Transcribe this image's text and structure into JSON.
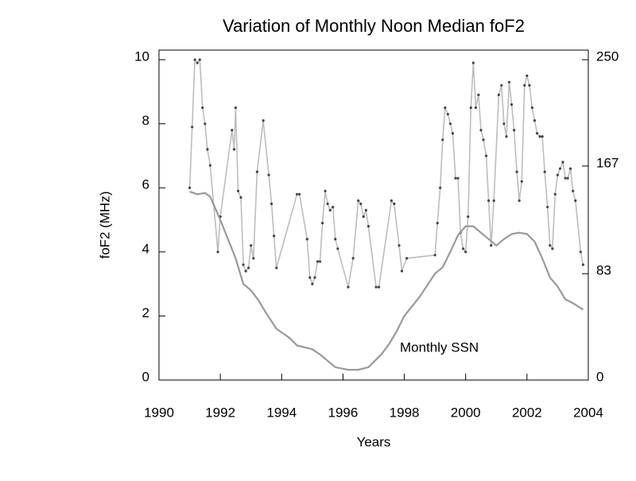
{
  "chart_data": {
    "type": "line",
    "title": "Variation of Monthly Noon Median foF2",
    "x_label": "Years",
    "y_label": "foF2 (MHz)",
    "xlim": [
      1990,
      2004
    ],
    "xticks": [
      1990,
      1992,
      1994,
      1996,
      1998,
      2000,
      2002,
      2004
    ],
    "ylim": [
      0,
      10.3
    ],
    "yticks": [
      0,
      2,
      4,
      6,
      8,
      10
    ],
    "y2lim": [
      0,
      257.5
    ],
    "y2ticks": [
      0,
      83,
      167,
      250
    ],
    "annotation": "Monthly SSN",
    "series": [
      {
        "color": "#bdbdbd",
        "markers": true,
        "x": [
          1991.0,
          1991.08,
          1991.17,
          1991.25,
          1991.33,
          1991.42,
          1991.5,
          1991.58,
          1991.67,
          1991.92,
          1992.0,
          1992.38,
          1992.45,
          1992.5,
          1992.58,
          1992.67,
          1992.75,
          1992.83,
          1992.92,
          1993.0,
          1993.08,
          1993.2,
          1993.4,
          1993.58,
          1993.67,
          1993.75,
          1993.83,
          1994.5,
          1994.58,
          1994.83,
          1994.92,
          1995.0,
          1995.08,
          1995.17,
          1995.25,
          1995.33,
          1995.42,
          1995.5,
          1995.58,
          1995.67,
          1995.75,
          1995.83,
          1996.17,
          1996.33,
          1996.5,
          1996.58,
          1996.67,
          1996.75,
          1996.83,
          1997.08,
          1997.17,
          1997.58,
          1997.67,
          1997.83,
          1997.92,
          1998.08,
          1999.0,
          1999.08,
          1999.17,
          1999.25,
          1999.33,
          1999.42,
          1999.5,
          1999.58,
          1999.67,
          1999.75,
          1999.83,
          1999.92,
          2000.0,
          2000.08,
          2000.17,
          2000.25,
          2000.33,
          2000.42,
          2000.5,
          2000.58,
          2000.67,
          2000.75,
          2000.83,
          2000.92,
          2001.08,
          2001.17,
          2001.25,
          2001.33,
          2001.42,
          2001.5,
          2001.58,
          2001.67,
          2001.75,
          2001.83,
          2001.92,
          2002.0,
          2002.08,
          2002.17,
          2002.25,
          2002.33,
          2002.42,
          2002.5,
          2002.58,
          2002.67,
          2002.75,
          2002.83,
          2002.92,
          2003.0,
          2003.08,
          2003.17,
          2003.25,
          2003.33,
          2003.42,
          2003.5,
          2003.58,
          2003.75,
          2003.83
        ],
        "values": [
          6.0,
          7.9,
          10.0,
          9.9,
          10.0,
          8.5,
          8.0,
          7.2,
          6.7,
          4.0,
          5.1,
          7.8,
          7.2,
          8.5,
          5.9,
          5.7,
          3.6,
          3.4,
          3.5,
          4.2,
          3.8,
          6.5,
          8.1,
          6.4,
          5.5,
          4.5,
          3.5,
          5.8,
          5.8,
          4.4,
          3.2,
          3.0,
          3.2,
          3.7,
          3.7,
          4.9,
          5.9,
          5.5,
          5.3,
          5.4,
          4.4,
          4.1,
          2.9,
          3.8,
          5.6,
          5.5,
          5.1,
          5.3,
          4.8,
          2.9,
          2.9,
          5.6,
          5.5,
          4.2,
          3.4,
          3.8,
          3.9,
          4.9,
          6.0,
          7.5,
          8.5,
          8.3,
          8.0,
          7.7,
          6.3,
          6.3,
          4.6,
          4.1,
          4.0,
          5.1,
          8.5,
          9.9,
          8.5,
          8.9,
          7.8,
          7.5,
          7.0,
          5.6,
          4.2,
          5.6,
          8.9,
          9.2,
          8.0,
          7.6,
          9.3,
          8.6,
          7.8,
          6.5,
          5.6,
          6.2,
          9.2,
          9.5,
          9.2,
          8.5,
          8.1,
          7.7,
          7.6,
          7.6,
          6.5,
          5.4,
          4.2,
          4.1,
          5.8,
          6.4,
          6.6,
          6.8,
          6.3,
          6.3,
          6.6,
          5.9,
          5.6,
          4.0,
          3.6
        ]
      },
      {
        "name": "Monthly SSN",
        "color": "#999999",
        "axis": "y2",
        "markers": false,
        "x": [
          1991.0,
          1991.25,
          1991.5,
          1991.67,
          1992.0,
          1992.5,
          1992.75,
          1993.0,
          1993.25,
          1993.5,
          1993.83,
          1994.25,
          1994.5,
          1995.0,
          1995.25,
          1995.5,
          1995.75,
          1996.17,
          1996.5,
          1996.83,
          1997.25,
          1997.5,
          1997.75,
          1998.0,
          1998.5,
          1999.0,
          1999.25,
          1999.5,
          1999.75,
          2000.0,
          2000.25,
          2000.5,
          2000.75,
          2001.0,
          2001.25,
          2001.5,
          2001.75,
          2002.0,
          2002.25,
          2002.5,
          2002.75,
          2003.0,
          2003.25,
          2003.5,
          2003.83
        ],
        "values": [
          147,
          145,
          146,
          143,
          125,
          95,
          75,
          70,
          62,
          52,
          40,
          33,
          27,
          24,
          20,
          15,
          10,
          8,
          8,
          10,
          20,
          28,
          38,
          50,
          65,
          83,
          88,
          100,
          113,
          120,
          120,
          115,
          110,
          105,
          110,
          114,
          115,
          114,
          108,
          95,
          80,
          73,
          63,
          60,
          55
        ]
      }
    ]
  }
}
